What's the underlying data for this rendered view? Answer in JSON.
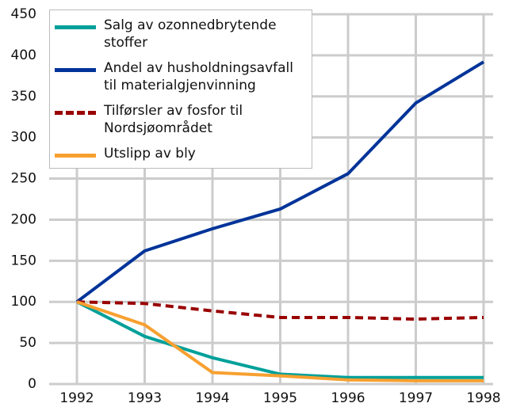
{
  "chart_data": {
    "type": "line",
    "categories": [
      "1992",
      "1993",
      "1994",
      "1995",
      "1996",
      "1997",
      "1998"
    ],
    "ylim": [
      0,
      450
    ],
    "yticks": [
      0,
      50,
      100,
      150,
      200,
      250,
      300,
      350,
      400,
      450
    ],
    "grid": true,
    "legend": "top-left",
    "series": [
      {
        "name": "Salg av ozonnedbrytende stoffer",
        "color": "#00a09a",
        "dash": false,
        "values": [
          100,
          58,
          32,
          12,
          8,
          8,
          8
        ]
      },
      {
        "name": "Andel av husholdningsavfall til materialgjenvinning",
        "color": "#003399",
        "dash": false,
        "values": [
          100,
          162,
          189,
          213,
          256,
          342,
          392
        ]
      },
      {
        "name": "Tilførsler av fosfor til Nordsjøområdet",
        "color": "#990000",
        "dash": true,
        "values": [
          100,
          98,
          89,
          81,
          81,
          79,
          81
        ]
      },
      {
        "name": "Utslipp av bly",
        "color": "#f7a030",
        "dash": false,
        "values": [
          100,
          72,
          14,
          10,
          5,
          4,
          4
        ]
      }
    ]
  }
}
